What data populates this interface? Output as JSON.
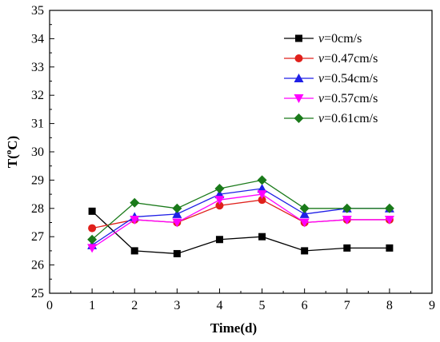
{
  "chart_data": {
    "type": "line",
    "xlabel": "Time(d)",
    "ylabel": "T(",
    "ylabel_sup": "o",
    "ylabel_tail": "C)",
    "xlim": [
      0,
      9
    ],
    "ylim": [
      25,
      35
    ],
    "xticks": [
      0,
      1,
      2,
      3,
      4,
      5,
      6,
      7,
      8,
      9
    ],
    "yticks": [
      25,
      26,
      27,
      28,
      29,
      30,
      31,
      32,
      33,
      34,
      35
    ],
    "grid": false,
    "legend_position": "top-right",
    "x": [
      1,
      2,
      3,
      4,
      5,
      6,
      7,
      8
    ],
    "series": [
      {
        "name": "v=0cm/s",
        "symbol": "v",
        "rest": "=0cm/s",
        "color": "#000000",
        "marker": "square",
        "values": [
          27.9,
          26.5,
          26.4,
          26.9,
          27.0,
          26.5,
          26.6,
          26.6
        ]
      },
      {
        "name": "v=0.47cm/s",
        "symbol": "v",
        "rest": "=0.47cm/s",
        "color": "#e0201b",
        "marker": "circle",
        "values": [
          27.3,
          27.6,
          27.5,
          28.1,
          28.3,
          27.5,
          27.6,
          27.6
        ]
      },
      {
        "name": "v=0.54cm/s",
        "symbol": "v",
        "rest": "=0.54cm/s",
        "color": "#1f1fe6",
        "marker": "triangle-up",
        "values": [
          26.7,
          27.7,
          27.8,
          28.5,
          28.7,
          27.8,
          28.0,
          28.0
        ]
      },
      {
        "name": "v=0.57cm/s",
        "symbol": "v",
        "rest": "=0.57cm/s",
        "color": "#ff00ff",
        "marker": "triangle-down",
        "values": [
          26.6,
          27.6,
          27.5,
          28.3,
          28.5,
          27.5,
          27.6,
          27.6
        ]
      },
      {
        "name": "v=0.61cm/s",
        "symbol": "v",
        "rest": "=0.61cm/s",
        "color": "#1a7a1a",
        "marker": "diamond",
        "values": [
          26.9,
          28.2,
          28.0,
          28.7,
          29.0,
          28.0,
          28.0,
          28.0
        ]
      }
    ]
  }
}
